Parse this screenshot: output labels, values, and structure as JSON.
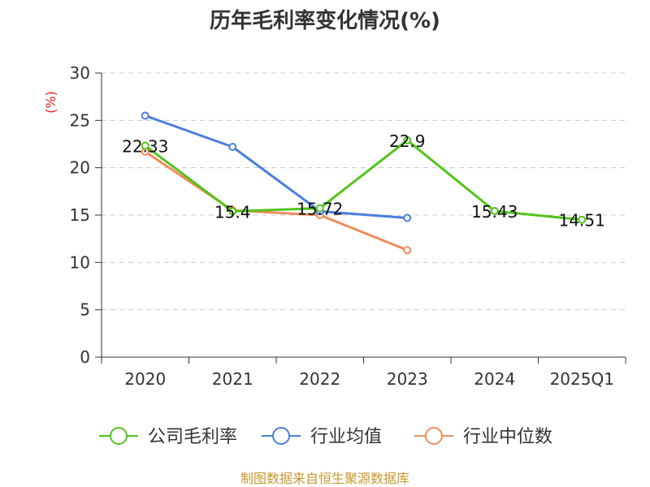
{
  "chart_data": {
    "type": "line",
    "title": "历年毛利率变化情况(%)",
    "ylabel": "(%)",
    "categories": [
      "2020",
      "2021",
      "2022",
      "2023",
      "2024",
      "2025Q1"
    ],
    "ylim": [
      0,
      30
    ],
    "yticks": [
      0,
      5,
      10,
      15,
      20,
      25,
      30
    ],
    "grid": true,
    "legend_position": "bottom",
    "series": [
      {
        "name": "公司毛利率",
        "color": "#52c41a",
        "values": [
          22.33,
          15.4,
          15.72,
          22.9,
          15.43,
          14.51
        ],
        "labels": [
          "22.33",
          "15.4",
          "15.72",
          "22.9",
          "15.43",
          "14.51"
        ]
      },
      {
        "name": "行业均值",
        "color": "#4a7fdc",
        "values": [
          25.5,
          22.2,
          15.4,
          14.7,
          null,
          null
        ]
      },
      {
        "name": "行业中位数",
        "color": "#f08c5a",
        "values": [
          21.7,
          15.5,
          15.0,
          11.3,
          null,
          null
        ]
      }
    ]
  },
  "source": "制图数据来自恒生聚源数据库"
}
